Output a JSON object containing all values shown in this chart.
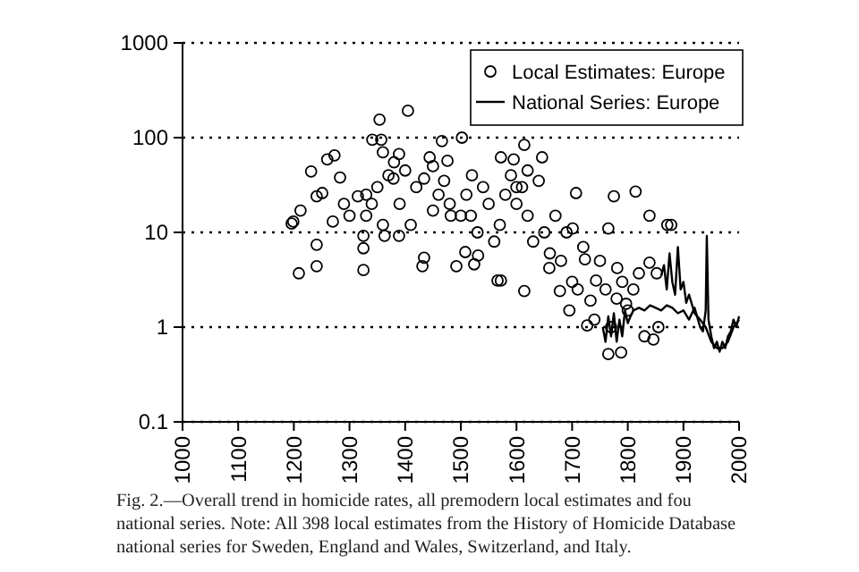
{
  "chart_data": {
    "type": "scatter",
    "xlim": [
      1000,
      2000
    ],
    "xticks": [
      1000,
      1100,
      1200,
      1300,
      1400,
      1500,
      1600,
      1700,
      1800,
      1900,
      2000
    ],
    "ylim": [
      0.1,
      1000
    ],
    "yticks": [
      0.1,
      1,
      10,
      100,
      1000
    ],
    "log": "y",
    "grid": "y",
    "legend": "top right",
    "series": [
      {
        "name": "Local Estimates: Europe",
        "marker": "circle",
        "color": "#000000",
        "x": [
          1405,
          1354,
          1341,
          1357,
          1466,
          1502,
          1231,
          1260,
          1273,
          1283,
          1199,
          1212,
          1241,
          1251,
          1315,
          1379,
          1389,
          1444,
          1476,
          1434,
          1450,
          1482,
          1518,
          1572,
          1209,
          1241,
          1241,
          1325,
          1325,
          1325,
          1434,
          1431,
          1492,
          1508,
          1524,
          1566,
          1389,
          1363,
          1196,
          1614,
          1646,
          1707,
          1775,
          1814,
          1839,
          1871,
          1595,
          1765,
          1788,
          1727,
          1830,
          1846,
          1855,
          1695,
          1733,
          1797,
          1614,
          1572,
          1678,
          1743,
          1820,
          1852,
          1701,
          1765,
          1878,
          1531,
          1659,
          1723,
          1781,
          1839,
          1600,
          1620,
          1630,
          1650,
          1660,
          1680,
          1700,
          1710,
          1600,
          1590,
          1580,
          1570,
          1560,
          1550,
          1540,
          1530,
          1640,
          1620,
          1610,
          1670,
          1690,
          1720,
          1750,
          1760,
          1780,
          1800,
          1810,
          1790,
          1740,
          1770,
          1420,
          1400,
          1380,
          1370,
          1350,
          1340,
          1330,
          1300,
          1290,
          1270,
          1360,
          1390,
          1410,
          1460,
          1470,
          1450,
          1500,
          1520,
          1510,
          1480,
          1360,
          1330
        ],
        "values": [
          192,
          155,
          95,
          95,
          92,
          100,
          44,
          59,
          65,
          38,
          13,
          17,
          24,
          26,
          24,
          37,
          67,
          62,
          57,
          37,
          17,
          15,
          15,
          62,
          3.7,
          4.4,
          7.4,
          4.0,
          6.8,
          9.2,
          5.4,
          4.4,
          4.4,
          6.2,
          4.6,
          3.1,
          9.2,
          9.2,
          12.4,
          84,
          62,
          26,
          24,
          27,
          15,
          12,
          59,
          0.52,
          0.54,
          1.04,
          0.8,
          0.74,
          1.0,
          1.5,
          1.9,
          1.76,
          2.4,
          3.1,
          2.4,
          3.1,
          3.7,
          3.7,
          11,
          11,
          12,
          5.7,
          4.2,
          5.2,
          4.2,
          4.8,
          20,
          15,
          8,
          10,
          6,
          5,
          3,
          2.5,
          30,
          40,
          25,
          12,
          8,
          20,
          30,
          10,
          35,
          45,
          30,
          15,
          10,
          7,
          5,
          2.5,
          2,
          1.5,
          2.5,
          3,
          1.2,
          1.0,
          30,
          45,
          55,
          40,
          30,
          20,
          25,
          15,
          20,
          13,
          70,
          20,
          12,
          25,
          35,
          50,
          15,
          40,
          25,
          20,
          12,
          15
        ]
      },
      {
        "name": "National Series: Europe",
        "type": "line",
        "marker": "none",
        "color": "#000000",
        "x": [
          1755,
          1760,
          1765,
          1770,
          1775,
          1780,
          1785,
          1790,
          1795,
          1800,
          1805,
          1810,
          1820,
          1830,
          1840,
          1850,
          1860,
          1870,
          1880,
          1890,
          1900,
          1910,
          1920,
          1930,
          1935,
          1940,
          1942,
          1945,
          1950,
          1955,
          1960,
          1965,
          1970,
          1975,
          1980,
          1985,
          1990,
          1995,
          2000
        ],
        "values": [
          1.0,
          0.7,
          1.3,
          0.8,
          1.4,
          0.7,
          1.2,
          0.8,
          1.5,
          1.1,
          1.3,
          1.5,
          1.6,
          1.5,
          1.7,
          1.6,
          1.5,
          1.7,
          1.6,
          1.4,
          1.5,
          1.2,
          1.6,
          1.0,
          0.9,
          1.5,
          9.2,
          1.2,
          0.8,
          0.6,
          0.7,
          0.55,
          0.7,
          0.6,
          0.8,
          0.9,
          1.2,
          1.0,
          1.3
        ]
      },
      {
        "type": "line",
        "marker": "none",
        "color": "#000000",
        "x": [
          1860,
          1865,
          1870,
          1875,
          1880,
          1885,
          1890,
          1895,
          1900,
          1905,
          1910,
          1920,
          1930,
          1940,
          1950,
          1960,
          1970,
          1980,
          1990,
          2000
        ],
        "values": [
          3.5,
          4.5,
          2.5,
          6,
          3,
          2.2,
          7,
          2.5,
          3,
          1.8,
          2.2,
          1.4,
          1.2,
          1.0,
          0.7,
          0.6,
          0.6,
          0.7,
          1.0,
          1.2
        ]
      }
    ],
    "annotations": [
      "Fig. 2.—Overall trend in homicide rates, all premodern local estimates and fou",
      "national series. Note: All 398 local estimates from the History of Homicide Database",
      "national series for Sweden, England and Wales, Switzerland, and Italy."
    ]
  }
}
